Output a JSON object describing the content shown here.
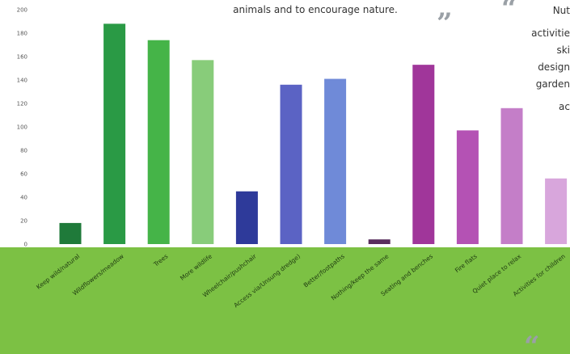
{
  "quote": {
    "text": "animals and to encourage nature.",
    "close_marks": "”",
    "open_marks": "“",
    "mark_color": "#9aa0a6"
  },
  "side_text": [
    "Nut",
    "activitie",
    "ski",
    "design",
    "garden",
    "ac"
  ],
  "bottom_band_color": "#7cc144",
  "chart_data": {
    "type": "bar",
    "categories": [
      "Keep wild/natural",
      "Wildflowers/meadow",
      "Trees",
      "More wildlife",
      "Wheelchair/pushchair",
      "Access via/Unsung dredge)",
      "Better/footpaths",
      "Nothing/keep the same",
      "Seating and benches",
      "Fire flats",
      "Quiet place to relax",
      "Activities for children"
    ],
    "values": [
      18,
      188,
      174,
      157,
      45,
      136,
      141,
      4,
      153,
      97,
      116,
      56
    ],
    "colors": [
      "#1f7a3a",
      "#2a9a45",
      "#45b448",
      "#88cc7a",
      "#2e3a9a",
      "#5b63c4",
      "#6f8ad8",
      "#5a2e5e",
      "#a0369a",
      "#b452b4",
      "#c47ec8",
      "#d8a6dc"
    ],
    "ylim": [
      0,
      200
    ],
    "yticks": [
      0,
      20,
      40,
      60,
      80,
      100,
      120,
      140,
      160,
      180,
      200
    ],
    "title": "",
    "xlabel": "",
    "ylabel": ""
  }
}
